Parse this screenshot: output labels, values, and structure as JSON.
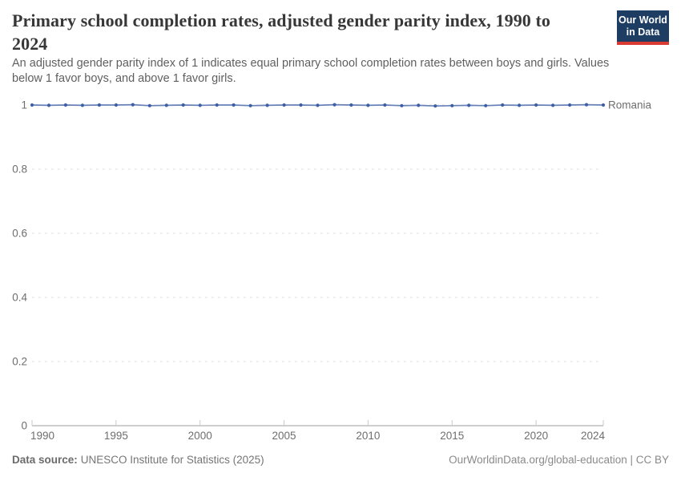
{
  "header": {
    "title": "Primary school completion rates, adjusted gender parity index, 1990 to 2024",
    "subtitle": "An adjusted gender parity index of 1 indicates equal primary school completion rates between boys and girls. Values below 1 favor boys, and above 1 favor girls.",
    "logo": {
      "line1": "Our World",
      "line2": "in Data"
    }
  },
  "chart_data": {
    "type": "line",
    "title": "Primary school completion rates, adjusted gender parity index, 1990 to 2024",
    "x": [
      1990,
      1991,
      1992,
      1993,
      1994,
      1995,
      1996,
      1997,
      1998,
      1999,
      2000,
      2001,
      2002,
      2003,
      2004,
      2005,
      2006,
      2007,
      2008,
      2009,
      2010,
      2011,
      2012,
      2013,
      2014,
      2015,
      2016,
      2017,
      2018,
      2019,
      2020,
      2021,
      2022,
      2023,
      2024
    ],
    "series": [
      {
        "name": "Romania",
        "values": [
          1,
          0.999,
          1,
          0.999,
          1,
          1,
          1.001,
          0.998,
          0.999,
          1,
          0.999,
          1,
          1,
          0.998,
          0.999,
          1,
          1,
          0.999,
          1.001,
          1,
          0.999,
          1,
          0.998,
          0.999,
          0.997,
          0.998,
          0.999,
          0.998,
          1,
          0.999,
          1,
          0.999,
          1,
          1.001,
          1
        ]
      }
    ],
    "xlabel": "",
    "ylabel": "",
    "x_ticks": [
      1990,
      1995,
      2000,
      2005,
      2010,
      2015,
      2020,
      2024
    ],
    "y_ticks": [
      0,
      0.2,
      0.4,
      0.6,
      0.8,
      1
    ],
    "ylim": [
      0,
      1
    ],
    "grid": "horizontal-dashed",
    "legend_position": "end-of-line-label"
  },
  "footer": {
    "source_label": "Data source:",
    "source_text": "UNESCO Institute for Statistics (2025)",
    "right_text": "OurWorldinData.org/global-education | CC BY"
  },
  "colors": {
    "series": "#3d5fa5",
    "series_line": "#6781b8",
    "logo_bg": "#1d3d63",
    "logo_accent": "#d93a34"
  }
}
